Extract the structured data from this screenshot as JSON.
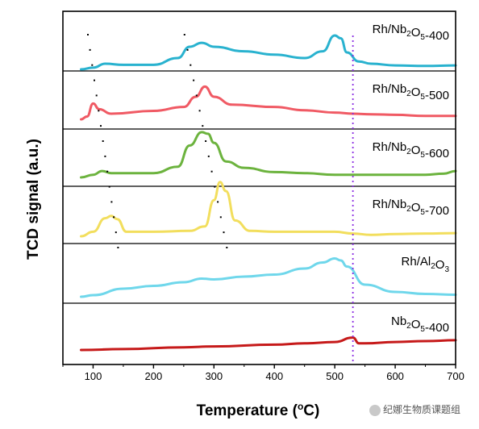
{
  "chart_data": {
    "type": "line",
    "xlabel": "Temperature (°C)",
    "ylabel": "TCD signal (a.u.)",
    "xlim": [
      50,
      700
    ],
    "xticks": [
      100,
      200,
      300,
      400,
      500,
      600,
      700
    ],
    "reference_line_x": 530,
    "watermark": "纪娜生物质课题组",
    "series": [
      {
        "name": "Rh/Nb2O5-400",
        "label_parts": [
          [
            "Rh/Nb",
            ""
          ],
          [
            "2",
            "sub"
          ],
          [
            "O",
            ""
          ],
          [
            "5",
            "sub"
          ],
          [
            "-400",
            ""
          ]
        ],
        "color": "#29b2cf",
        "x": [
          80,
          100,
          120,
          150,
          200,
          240,
          260,
          280,
          300,
          350,
          400,
          450,
          480,
          500,
          510,
          520,
          540,
          560,
          600,
          650,
          700
        ],
        "y": [
          0.0,
          0.03,
          0.1,
          0.08,
          0.08,
          0.2,
          0.4,
          0.47,
          0.4,
          0.32,
          0.26,
          0.2,
          0.32,
          0.6,
          0.55,
          0.3,
          0.14,
          0.1,
          0.07,
          0.06,
          0.07
        ]
      },
      {
        "name": "Rh/Nb2O5-500",
        "label_parts": [
          [
            "Rh/Nb",
            ""
          ],
          [
            "2",
            "sub"
          ],
          [
            "O",
            ""
          ],
          [
            "5",
            "sub"
          ],
          [
            "-500",
            ""
          ]
        ],
        "color": "#f05a64",
        "x": [
          80,
          90,
          100,
          110,
          130,
          200,
          250,
          270,
          285,
          300,
          330,
          400,
          450,
          500,
          530,
          560,
          600,
          650,
          700
        ],
        "y": [
          0.0,
          0.05,
          0.28,
          0.18,
          0.1,
          0.15,
          0.22,
          0.4,
          0.58,
          0.4,
          0.26,
          0.22,
          0.16,
          0.12,
          0.1,
          0.09,
          0.08,
          0.06,
          0.06
        ]
      },
      {
        "name": "Rh/Nb2O5-600",
        "label_parts": [
          [
            "Rh/Nb",
            ""
          ],
          [
            "2",
            "sub"
          ],
          [
            "O",
            ""
          ],
          [
            "5",
            "sub"
          ],
          [
            "-600",
            ""
          ]
        ],
        "color": "#6cb33e",
        "x": [
          80,
          100,
          115,
          130,
          200,
          240,
          260,
          280,
          290,
          300,
          320,
          350,
          400,
          450,
          500,
          550,
          600,
          650,
          680,
          700
        ],
        "y": [
          0.0,
          0.05,
          0.12,
          0.08,
          0.08,
          0.2,
          0.6,
          0.85,
          0.82,
          0.65,
          0.3,
          0.18,
          0.1,
          0.08,
          0.05,
          0.05,
          0.05,
          0.05,
          0.07,
          0.12
        ]
      },
      {
        "name": "Rh/Nb2O5-700",
        "label_parts": [
          [
            "Rh/Nb",
            ""
          ],
          [
            "2",
            "sub"
          ],
          [
            "O",
            ""
          ],
          [
            "5",
            "sub"
          ],
          [
            "-700",
            ""
          ]
        ],
        "color": "#f2de5d",
        "x": [
          80,
          100,
          120,
          130,
          140,
          155,
          200,
          260,
          285,
          300,
          310,
          320,
          335,
          360,
          400,
          450,
          500,
          530,
          560,
          600,
          650,
          700
        ],
        "y": [
          0.0,
          0.1,
          0.4,
          0.45,
          0.38,
          0.1,
          0.1,
          0.12,
          0.22,
          0.8,
          1.2,
          1.0,
          0.35,
          0.12,
          0.1,
          0.1,
          0.1,
          0.06,
          0.03,
          0.05,
          0.06,
          0.07
        ]
      },
      {
        "name": "Rh/Al2O3",
        "label_parts": [
          [
            "Rh/Al",
            ""
          ],
          [
            "2",
            "sub"
          ],
          [
            "O",
            ""
          ],
          [
            "3",
            "sub"
          ],
          [
            "",
            ""
          ]
        ],
        "color": "#6fd7eb",
        "x": [
          80,
          100,
          150,
          200,
          250,
          280,
          300,
          350,
          400,
          450,
          480,
          500,
          510,
          520,
          550,
          600,
          650,
          700
        ],
        "y": [
          0.0,
          0.04,
          0.2,
          0.27,
          0.36,
          0.45,
          0.43,
          0.5,
          0.55,
          0.7,
          0.85,
          0.95,
          0.9,
          0.75,
          0.3,
          0.12,
          0.07,
          0.05
        ]
      },
      {
        "name": "Nb2O5-400",
        "label_parts": [
          [
            "Nb",
            ""
          ],
          [
            "2",
            "sub"
          ],
          [
            "O",
            ""
          ],
          [
            "5",
            "sub"
          ],
          [
            "-400",
            ""
          ]
        ],
        "color": "#c61a1a",
        "x": [
          80,
          150,
          250,
          300,
          400,
          450,
          500,
          530,
          540,
          550,
          600,
          650,
          700
        ],
        "y": [
          0.0,
          0.02,
          0.06,
          0.08,
          0.12,
          0.15,
          0.18,
          0.28,
          0.15,
          0.15,
          0.18,
          0.2,
          0.22
        ]
      }
    ],
    "dotted_trend_lines": [
      {
        "from": [
          90,
          0
        ],
        "to": [
          140,
          3
        ]
      },
      {
        "from": [
          250,
          0
        ],
        "to": [
          320,
          3
        ]
      }
    ]
  }
}
